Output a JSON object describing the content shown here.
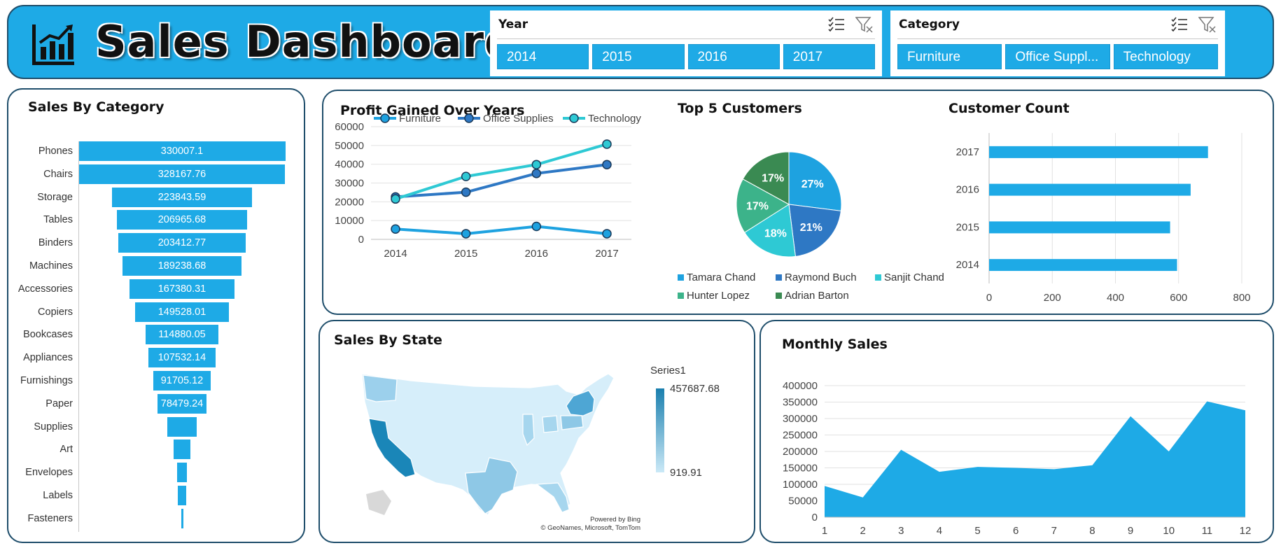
{
  "header": {
    "title": "Sales Dashboard",
    "logo_icon": "bar-chart-icon"
  },
  "slicers": {
    "year": {
      "title": "Year",
      "options": [
        "2014",
        "2015",
        "2016",
        "2017"
      ]
    },
    "category": {
      "title": "Category",
      "options": [
        "Furniture",
        "Office Suppl...",
        "Technology"
      ]
    }
  },
  "colors": {
    "accent": "#1eaae6",
    "furniture": "#1ea2e0",
    "office_supplies": "#2e78c4",
    "technology": "#2ec9d4",
    "border": "#1f4e6b"
  },
  "chart_data": [
    {
      "id": "sales_by_category",
      "type": "bar",
      "title": "Sales By Category",
      "categories": [
        "Phones",
        "Chairs",
        "Storage",
        "Tables",
        "Binders",
        "Machines",
        "Accessories",
        "Copiers",
        "Bookcases",
        "Appliances",
        "Furnishings",
        "Paper",
        "Supplies",
        "Art",
        "Envelopes",
        "Labels",
        "Fasteners"
      ],
      "values": [
        330007.1,
        328167.76,
        223843.59,
        206965.68,
        203412.77,
        189238.68,
        167380.31,
        149528.01,
        114880.05,
        107532.14,
        91705.12,
        78479.24,
        46673.54,
        27118.79,
        16476.4,
        12486.31,
        3024.28
      ],
      "labels": [
        "330007.1",
        "328167.76",
        "223843.59",
        "206965.68",
        "203412.77",
        "189238.68",
        "167380.31",
        "149528.01",
        "114880.05",
        "107532.14",
        "91705.12",
        "78479.24",
        "",
        "",
        "",
        "",
        ""
      ]
    },
    {
      "id": "profit_over_years",
      "type": "line",
      "title": "Profit Gained Over Years",
      "x": [
        "2014",
        "2015",
        "2016",
        "2017"
      ],
      "series": [
        {
          "name": "Furniture",
          "values": [
            5500,
            3000,
            6900,
            3000
          ]
        },
        {
          "name": "Office Supplies",
          "values": [
            22600,
            25100,
            35100,
            39800
          ]
        },
        {
          "name": "Technology",
          "values": [
            21500,
            33500,
            39800,
            50700
          ]
        }
      ],
      "yticks": [
        "60000",
        "50000",
        "40000",
        "30000",
        "20000",
        "10000",
        "0"
      ],
      "ylim": [
        0,
        60000
      ],
      "legend": "top"
    },
    {
      "id": "top_customers",
      "type": "pie",
      "title": "Top 5 Customers",
      "labels": [
        "Tamara Chand",
        "Raymond Buch",
        "Sanjit Chand",
        "Hunter Lopez",
        "Adrian Barton"
      ],
      "values": [
        27,
        21,
        18,
        17,
        17
      ],
      "slice_labels": [
        "27%",
        "21%",
        "18%",
        "17%",
        "17%"
      ],
      "colors": [
        "#1ea2e0",
        "#2e78c4",
        "#2ec9d4",
        "#3cb38a",
        "#3a8a52"
      ],
      "legend": "bottom"
    },
    {
      "id": "customer_count",
      "type": "bar",
      "title": "Customer Count",
      "categories": [
        "2017",
        "2016",
        "2015",
        "2014"
      ],
      "values": [
        693,
        638,
        573,
        595
      ],
      "xticks": [
        "0",
        "200",
        "400",
        "600",
        "800"
      ],
      "xlim": [
        0,
        800
      ]
    },
    {
      "id": "sales_by_state",
      "type": "heatmap",
      "title": "Sales By State",
      "legend_title": "Series1",
      "max_label": "457687.68",
      "min_label": "919.91",
      "attribution": [
        "Powered by Bing",
        "© GeoNames, Microsoft, TomTom"
      ]
    },
    {
      "id": "monthly_sales",
      "type": "area",
      "title": "Monthly Sales",
      "x": [
        "1",
        "2",
        "3",
        "4",
        "5",
        "6",
        "7",
        "8",
        "9",
        "10",
        "11",
        "12"
      ],
      "values": [
        95000,
        60000,
        205000,
        138000,
        153000,
        150000,
        146000,
        158000,
        307000,
        200000,
        352000,
        325000
      ],
      "yticks": [
        "400000",
        "350000",
        "300000",
        "250000",
        "200000",
        "150000",
        "100000",
        "50000",
        "0"
      ],
      "ylim": [
        0,
        400000
      ]
    }
  ]
}
